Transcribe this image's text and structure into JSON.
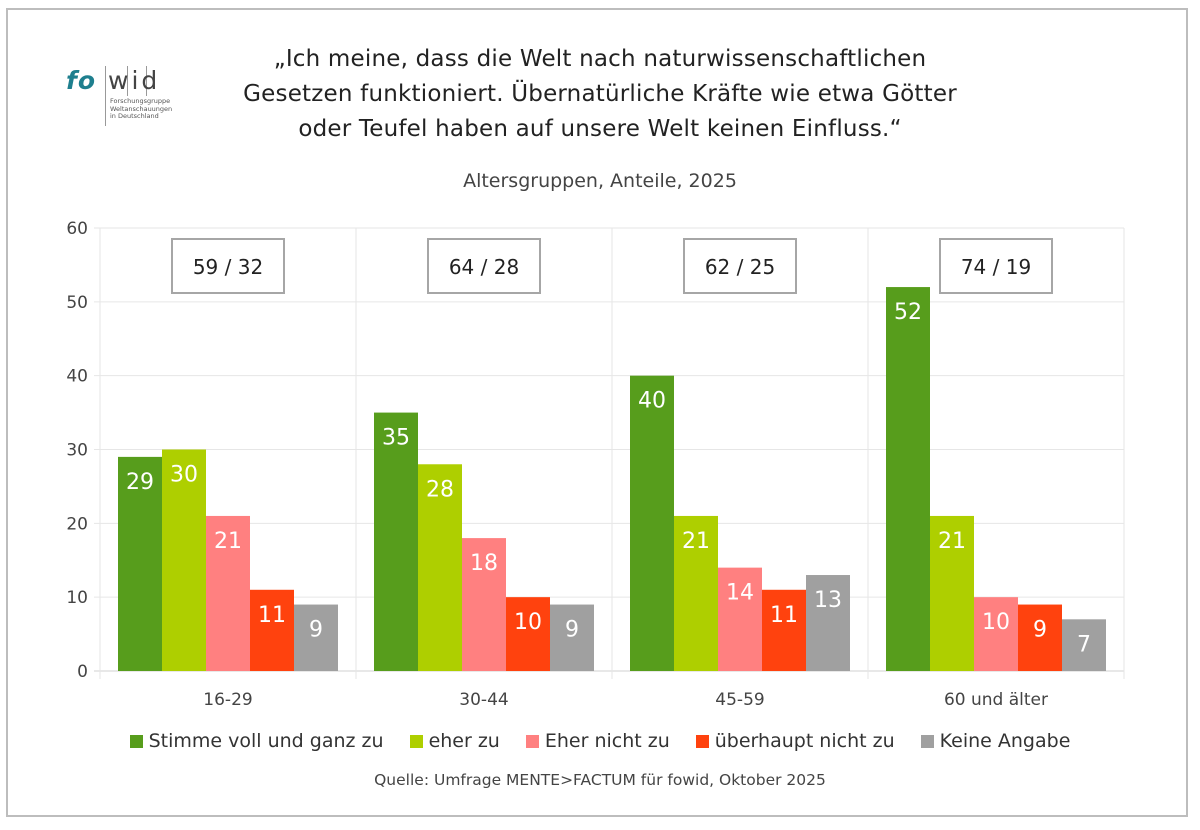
{
  "logo": {
    "brand_left": "fo",
    "brand_right": "wid",
    "subtitle_lines": [
      "Forschungsgruppe",
      "Weltanschauungen",
      "in Deutschland"
    ]
  },
  "chart_data": {
    "type": "bar",
    "title_lines": [
      "„Ich meine, dass die Welt nach naturwissenschaftlichen",
      "Gesetzen funktioniert. Übernatürliche Kräfte wie etwa Götter",
      "oder Teufel haben auf unsere Welt keinen Einfluss.“"
    ],
    "subtitle": "Altersgruppen, Anteile, 2025",
    "xlabel": "",
    "ylabel": "",
    "ylim": [
      0,
      60
    ],
    "yticks": [
      0,
      10,
      20,
      30,
      40,
      50,
      60
    ],
    "grid": true,
    "categories": [
      "16-29",
      "30-44",
      "45-59",
      "60 und älter"
    ],
    "series": [
      {
        "name": "Stimme voll und ganz zu",
        "color": "#579d1c",
        "values": [
          29,
          35,
          40,
          52
        ]
      },
      {
        "name": "eher zu",
        "color": "#aecf00",
        "values": [
          30,
          28,
          21,
          21
        ]
      },
      {
        "name": "Eher nicht zu",
        "color": "#ff8080",
        "values": [
          21,
          18,
          14,
          10
        ]
      },
      {
        "name": "überhaupt nicht zu",
        "color": "#ff420e",
        "values": [
          11,
          10,
          11,
          9
        ]
      },
      {
        "name": "Keine Angabe",
        "color": "#a0a0a0",
        "values": [
          9,
          9,
          13,
          7
        ]
      }
    ],
    "annotations": [
      "59 / 32",
      "64 / 28",
      "62 / 25",
      "74 / 19"
    ],
    "legend_position": "bottom",
    "source": "Quelle: Umfrage MENTE>FACTUM für fowid, Oktober 2025"
  }
}
